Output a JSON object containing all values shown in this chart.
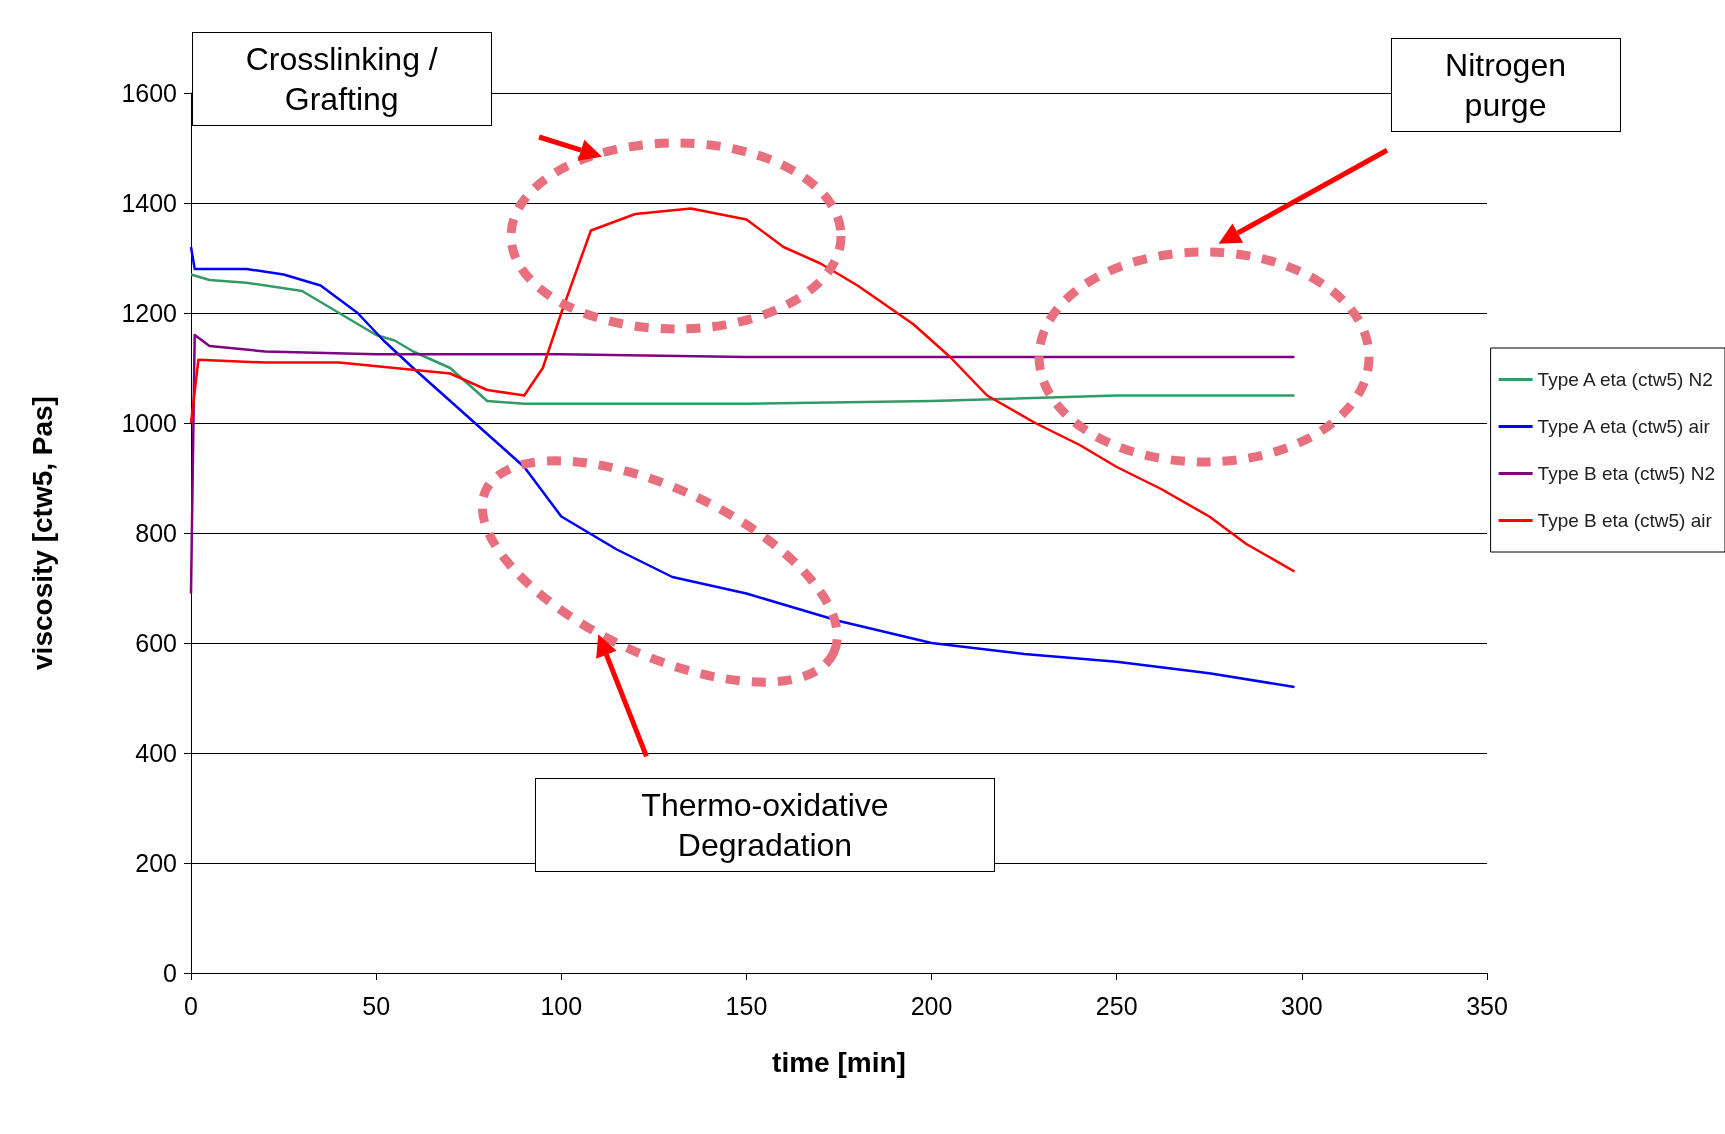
{
  "chart_data": {
    "type": "line",
    "xlabel": "time [min]",
    "ylabel": "viscosity [ctw5, Pas]",
    "xlim": [
      0,
      350
    ],
    "xticks": [
      0,
      50,
      100,
      150,
      200,
      250,
      300,
      350
    ],
    "ylim": [
      0,
      1600
    ],
    "yticks": [
      0,
      200,
      400,
      600,
      800,
      1000,
      1200,
      1400,
      1600
    ],
    "grid": "y",
    "legend": "right",
    "marker": "none",
    "line_style": "solid",
    "annotations": [
      "Crosslinking / Grafting",
      "Nitrogen purge",
      "Thermo-oxidative Degradation"
    ],
    "series": [
      {
        "name": "Type A eta (ctw5) N2",
        "color": "#339966",
        "x": [
          0,
          5,
          15,
          30,
          40,
          50,
          55,
          60,
          70,
          80,
          90,
          100,
          150,
          200,
          250,
          298
        ],
        "values": [
          1270,
          1260,
          1255,
          1240,
          1200,
          1160,
          1150,
          1130,
          1100,
          1040,
          1035,
          1035,
          1035,
          1040,
          1050,
          1050
        ]
      },
      {
        "name": "Type A eta (ctw5) air",
        "color": "#0000ff",
        "x": [
          0,
          1,
          5,
          15,
          25,
          35,
          45,
          52,
          60,
          70,
          80,
          90,
          100,
          115,
          130,
          150,
          175,
          200,
          225,
          250,
          275,
          298
        ],
        "values": [
          1320,
          1280,
          1280,
          1280,
          1270,
          1250,
          1200,
          1150,
          1100,
          1040,
          980,
          920,
          830,
          770,
          720,
          690,
          640,
          600,
          580,
          566,
          545,
          520
        ]
      },
      {
        "name": "Type B eta (ctw5) N2",
        "color": "#800080",
        "x": [
          0,
          1,
          5,
          20,
          50,
          100,
          150,
          200,
          250,
          298
        ],
        "values": [
          690,
          1160,
          1140,
          1130,
          1125,
          1125,
          1120,
          1120,
          1120,
          1120
        ]
      },
      {
        "name": "Type B eta (ctw5) air",
        "color": "#ff0000",
        "x": [
          0,
          2,
          20,
          40,
          55,
          70,
          80,
          90,
          95,
          100,
          108,
          120,
          135,
          150,
          160,
          170,
          180,
          195,
          205,
          215,
          228,
          240,
          250,
          262,
          275,
          285,
          298
        ],
        "values": [
          1000,
          1115,
          1110,
          1110,
          1100,
          1090,
          1060,
          1050,
          1100,
          1200,
          1350,
          1380,
          1390,
          1370,
          1320,
          1290,
          1250,
          1180,
          1120,
          1050,
          1000,
          960,
          920,
          880,
          830,
          780,
          730
        ]
      }
    ]
  }
}
